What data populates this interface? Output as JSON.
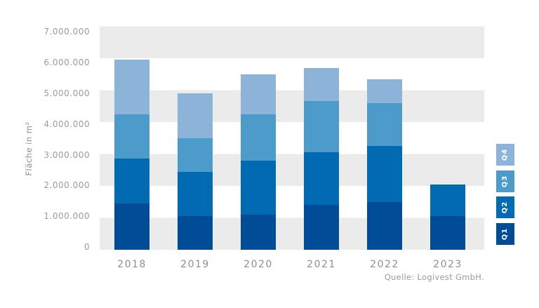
{
  "chart_data": {
    "type": "bar",
    "stacked": true,
    "title": "",
    "xlabel": "",
    "ylabel": "Fläche in m²",
    "categories": [
      "2018",
      "2019",
      "2020",
      "2021",
      "2022",
      "2023"
    ],
    "series": [
      {
        "name": "Q1",
        "color": "#004C97",
        "values": [
          1450000,
          1050000,
          1100000,
          1400000,
          1500000,
          1050000
        ]
      },
      {
        "name": "Q2",
        "color": "#006AB3",
        "values": [
          1400000,
          1400000,
          1700000,
          1650000,
          1750000,
          1000000
        ]
      },
      {
        "name": "Q3",
        "color": "#4D9BCB",
        "values": [
          1400000,
          1050000,
          1450000,
          1600000,
          1350000,
          0
        ]
      },
      {
        "name": "Q4",
        "color": "#8CB3D8",
        "values": [
          1700000,
          1400000,
          1250000,
          1050000,
          750000,
          0
        ]
      }
    ],
    "totals": [
      5950000,
      4900000,
      5500000,
      5700000,
      5350000,
      2050000
    ],
    "ylim": [
      0,
      7000000
    ],
    "ytick_step": 1000000,
    "ytick_labels": [
      "0",
      "1.000.000",
      "2.000.000",
      "3.000.000",
      "4.000.000",
      "5.000.000",
      "6.000.000",
      "7.000.000"
    ],
    "grid": "alternating-horizontal-bands",
    "band_color": "#EBEBEC",
    "legend_position": "right",
    "legend_order": [
      "Q4",
      "Q3",
      "Q2",
      "Q1"
    ]
  },
  "source": {
    "label": "Quelle: Logivest GmbH."
  },
  "colors": {
    "background": "#FFFFFF",
    "axis_text": "#9B9B9B",
    "band": "#EBEBEC",
    "q1": "#004C97",
    "q2": "#006AB3",
    "q3": "#4D9BCB",
    "q4": "#8CB3D8"
  }
}
